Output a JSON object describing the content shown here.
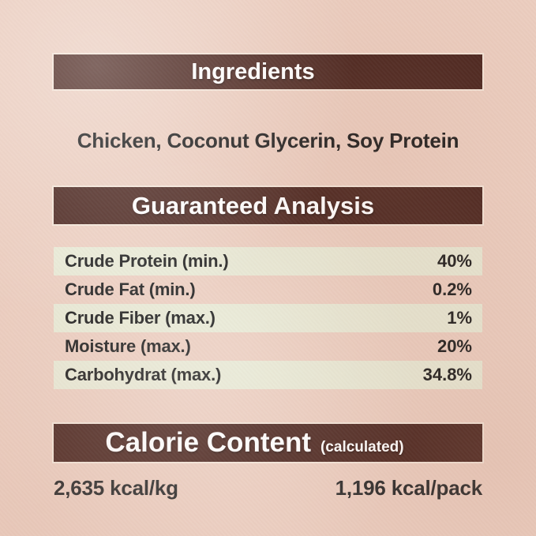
{
  "colors": {
    "background": "#ebcdbf",
    "header_bar": "#49241d",
    "header_text": "#ffffff",
    "row_highlight": "#e7e8d4",
    "body_text": "#1a1a1a"
  },
  "ingredients": {
    "title": "Ingredients",
    "list": "Chicken, Coconut Glycerin, Soy Protein"
  },
  "guaranteed_analysis": {
    "title": "Guaranteed Analysis",
    "rows": [
      {
        "label": "Crude Protein (min.)",
        "value": "40%"
      },
      {
        "label": "Crude Fat (min.)",
        "value": "0.2%"
      },
      {
        "label": "Crude Fiber (max.)",
        "value": "1%"
      },
      {
        "label": "Moisture (max.)",
        "value": "20%"
      },
      {
        "label": "Carbohydrat (max.)",
        "value": "34.8%"
      }
    ]
  },
  "calorie_content": {
    "title": "Calorie Content",
    "qualifier": "(calculated)",
    "per_kg": "2,635 kcal/kg",
    "per_pack": "1,196 kcal/pack"
  }
}
